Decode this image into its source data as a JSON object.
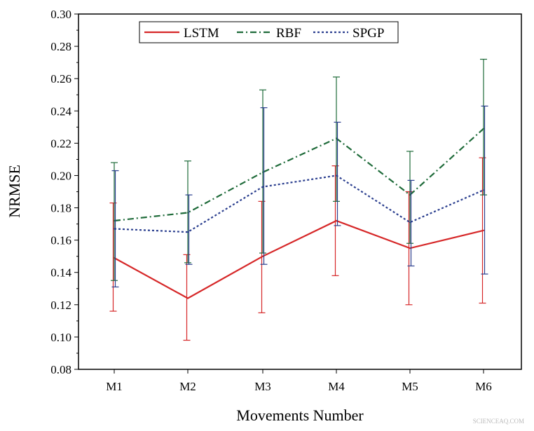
{
  "chart_data": {
    "type": "line",
    "title": "",
    "xlabel": "Movements Number",
    "ylabel": "NRMSE",
    "categories": [
      "M1",
      "M2",
      "M3",
      "M4",
      "M5",
      "M6"
    ],
    "ylim": [
      0.08,
      0.3
    ],
    "yticks": [
      "0.08",
      "0.10",
      "0.12",
      "0.14",
      "0.16",
      "0.18",
      "0.20",
      "0.22",
      "0.24",
      "0.26",
      "0.28",
      "0.30"
    ],
    "grid": false,
    "legend_position": "top",
    "error_bars": true,
    "series": [
      {
        "name": "LSTM",
        "color": "#d62728",
        "dash": "solid",
        "values": [
          0.149,
          0.124,
          0.15,
          0.172,
          0.155,
          0.166
        ],
        "upper": [
          0.183,
          0.151,
          0.184,
          0.206,
          0.19,
          0.211
        ],
        "lower": [
          0.116,
          0.098,
          0.115,
          0.138,
          0.12,
          0.121
        ]
      },
      {
        "name": "RBF",
        "color": "#1f6b3a",
        "dash": "dashdot",
        "values": [
          0.172,
          0.177,
          0.202,
          0.223,
          0.188,
          0.229
        ],
        "upper": [
          0.208,
          0.209,
          0.253,
          0.261,
          0.215,
          0.272
        ],
        "lower": [
          0.135,
          0.146,
          0.152,
          0.184,
          0.158,
          0.188
        ]
      },
      {
        "name": "SPGP",
        "color": "#2b3f8f",
        "dash": "dot",
        "values": [
          0.167,
          0.165,
          0.193,
          0.2,
          0.171,
          0.191
        ],
        "upper": [
          0.203,
          0.188,
          0.242,
          0.233,
          0.197,
          0.243
        ],
        "lower": [
          0.131,
          0.145,
          0.145,
          0.169,
          0.144,
          0.139
        ]
      }
    ]
  },
  "watermark": "SCIENCEAQ.COM"
}
